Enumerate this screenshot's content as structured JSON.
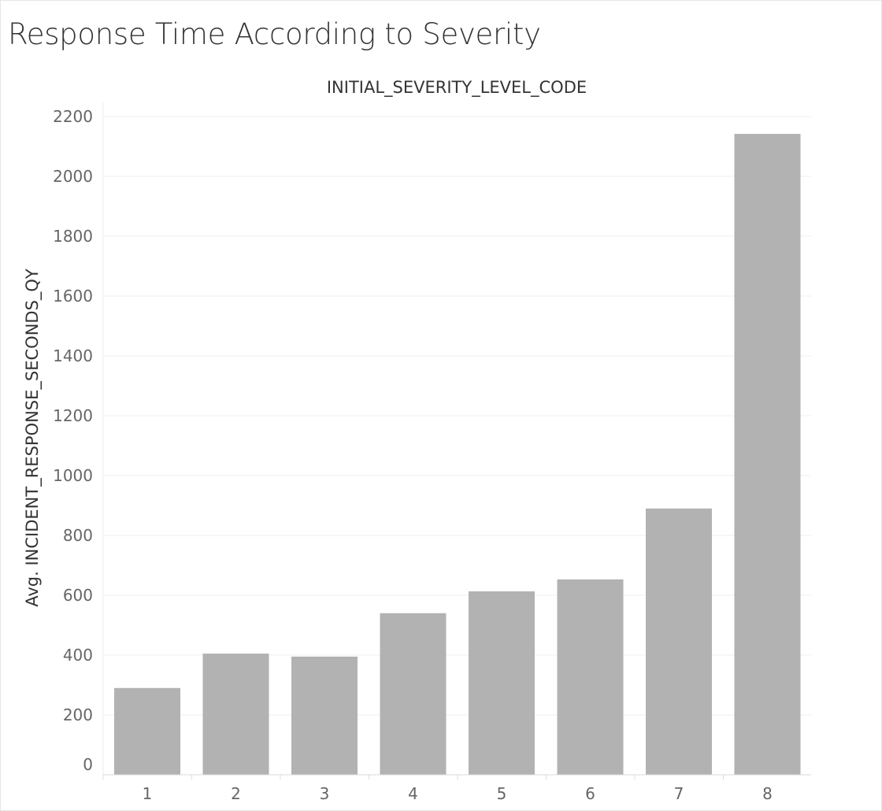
{
  "title": "Response Time According to Severity",
  "chart_data": {
    "type": "bar",
    "xlabel": "INITIAL_SEVERITY_LEVEL_CODE",
    "ylabel": "Avg. INCIDENT_RESPONSE_SECONDS_QY",
    "categories": [
      "1",
      "2",
      "3",
      "4",
      "5",
      "6",
      "7",
      "8"
    ],
    "values": [
      290,
      405,
      395,
      540,
      613,
      653,
      890,
      2142
    ],
    "ylim": [
      0,
      2200
    ],
    "yticks": [
      0,
      200,
      400,
      600,
      800,
      1000,
      1200,
      1400,
      1600,
      1800,
      2000,
      2200
    ],
    "bar_color": "#b2b2b2",
    "grid": true
  }
}
